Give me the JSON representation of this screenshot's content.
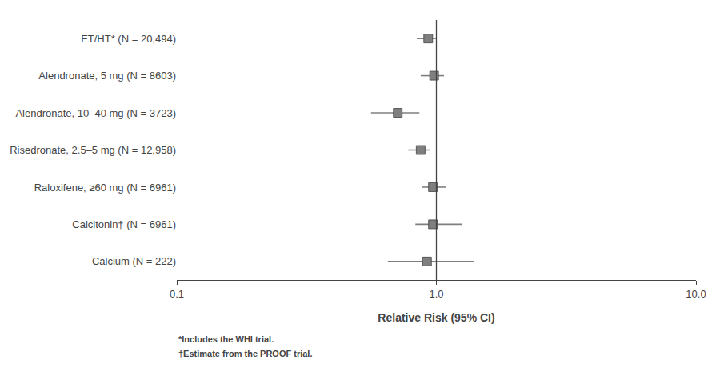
{
  "chart_data": {
    "type": "forest",
    "xlabel": "Relative Risk (95% CI)",
    "categories": [
      "ET/HT* (N = 20,494)",
      "Alendronate, 5 mg (N = 8603)",
      "Alendronate, 10–40 mg (N = 3723)",
      "Risedronate, 2.5–5 mg (N = 12,958)",
      "Raloxifene, ≥60 mg (N = 6961)",
      "Calcitonin† (N = 6961)",
      "Calcium (N = 222)"
    ],
    "values": [
      0.93,
      0.98,
      0.71,
      0.87,
      0.97,
      0.97,
      0.92
    ],
    "ci_lo": [
      0.84,
      0.87,
      0.56,
      0.78,
      0.88,
      0.83,
      0.65
    ],
    "ci_hi": [
      1.0,
      1.07,
      0.86,
      0.94,
      1.09,
      1.26,
      1.4
    ],
    "reference_line": 1.0,
    "annotations": [
      "*Includes the WHI trial.",
      "†Estimate from the PROOF trial."
    ],
    "xlim": [
      0.1,
      10.0
    ],
    "xticks": [
      0.1,
      {
        "value": 1.0,
        "label": "1.0"
      },
      {
        "value": 10.0,
        "label": "10.0"
      }
    ],
    "log": "x",
    "grid": false,
    "color": "#7f7f7f",
    "marker": "square"
  }
}
